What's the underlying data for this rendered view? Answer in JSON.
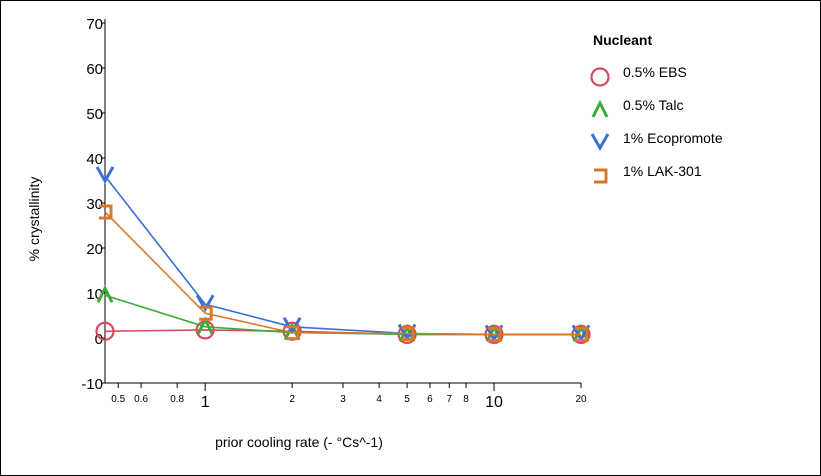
{
  "chart_data": {
    "type": "line",
    "xlabel": "prior cooling rate (- °Cs^-1)",
    "ylabel": "% crystallinity",
    "xscale": "log",
    "xlim": [
      0.45,
      20
    ],
    "ylim": [
      -10,
      70
    ],
    "grid": false,
    "yticks": [
      "-10",
      "0",
      "10",
      "20",
      "30",
      "40",
      "50",
      "60",
      "70"
    ],
    "xticks_major": [
      "1",
      "10"
    ],
    "xticks_minor": [
      "0.5",
      "0.6",
      "0.8",
      "2",
      "3",
      "4",
      "5",
      "6",
      "7",
      "8",
      "20"
    ],
    "legend": {
      "title": "Nucleant",
      "position": "right"
    },
    "x": [
      0.45,
      1,
      2,
      5,
      10,
      20
    ],
    "series": [
      {
        "name": "0.5% EBS",
        "marker": "circle",
        "color": "#d94a5e",
        "values": [
          1.5,
          1.8,
          1.5,
          0.8,
          0.8,
          0.8
        ]
      },
      {
        "name": "0.5% Talc",
        "marker": "triangle-up",
        "color": "#3aaa3a",
        "values": [
          9.5,
          2.5,
          1.2,
          0.8,
          0.8,
          0.8
        ]
      },
      {
        "name": "1% Ecopromote",
        "marker": "chevron-down",
        "color": "#3b6fd4",
        "values": [
          36,
          7.5,
          2.5,
          1.0,
          0.8,
          0.8
        ]
      },
      {
        "name": "1% LAK-301",
        "marker": "bracket",
        "color": "#d9782a",
        "values": [
          28,
          5.5,
          1.2,
          1.0,
          0.8,
          0.8
        ]
      }
    ]
  }
}
